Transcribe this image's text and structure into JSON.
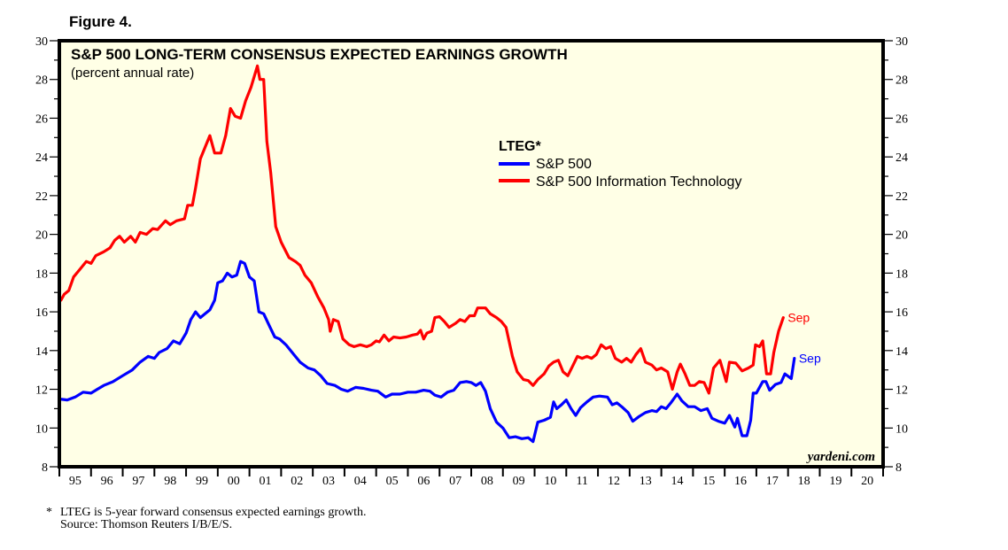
{
  "figure_label": "Figure 4.",
  "footnote": {
    "marker": "*",
    "line1": "LTEG is 5-year forward consensus expected earnings growth.",
    "line2": "Source: Thomson Reuters I/B/E/S."
  },
  "watermark": "yardeni.com",
  "colors": {
    "plot_background": "#ffffe6",
    "sp500": "#0000ff",
    "sp500_it": "#ff0000",
    "axis": "#000000"
  },
  "chart_data": {
    "type": "line",
    "title": "S&P 500 LONG-TERM CONSENSUS EXPECTED EARNINGS GROWTH",
    "subtitle": "(percent annual rate)",
    "xlabel": "",
    "ylabel": "",
    "xlim": [
      1995,
      2021
    ],
    "ylim": [
      8,
      30
    ],
    "y_major_ticks": [
      8,
      10,
      12,
      14,
      16,
      18,
      20,
      22,
      24,
      26,
      28,
      30
    ],
    "y_minor_step": 1,
    "y_axis_sides": [
      "left",
      "right"
    ],
    "x_tick_labels": [
      "95",
      "96",
      "97",
      "98",
      "99",
      "00",
      "01",
      "02",
      "03",
      "04",
      "05",
      "06",
      "07",
      "08",
      "09",
      "10",
      "11",
      "12",
      "13",
      "14",
      "15",
      "16",
      "17",
      "18",
      "19",
      "20"
    ],
    "grid": false,
    "legend": {
      "title": "LTEG*",
      "placement": "top-center",
      "entries": [
        "S&P 500",
        "S&P 500 Information Technology"
      ]
    },
    "series": [
      {
        "name": "S&P 500",
        "color": "#0000ff",
        "end_label": "Sep",
        "points": [
          [
            1995.0,
            11.5
          ],
          [
            1995.25,
            11.45
          ],
          [
            1995.5,
            11.6
          ],
          [
            1995.75,
            11.85
          ],
          [
            1996.0,
            11.8
          ],
          [
            1996.2,
            12.0
          ],
          [
            1996.4,
            12.2
          ],
          [
            1996.7,
            12.4
          ],
          [
            1997.0,
            12.7
          ],
          [
            1997.3,
            13.0
          ],
          [
            1997.55,
            13.4
          ],
          [
            1997.8,
            13.7
          ],
          [
            1998.0,
            13.6
          ],
          [
            1998.15,
            13.9
          ],
          [
            1998.4,
            14.1
          ],
          [
            1998.6,
            14.5
          ],
          [
            1998.8,
            14.35
          ],
          [
            1999.0,
            14.9
          ],
          [
            1999.15,
            15.6
          ],
          [
            1999.3,
            16.0
          ],
          [
            1999.45,
            15.7
          ],
          [
            1999.6,
            15.9
          ],
          [
            1999.75,
            16.1
          ],
          [
            1999.9,
            16.6
          ],
          [
            2000.0,
            17.5
          ],
          [
            2000.15,
            17.6
          ],
          [
            2000.3,
            18.0
          ],
          [
            2000.45,
            17.8
          ],
          [
            2000.6,
            17.9
          ],
          [
            2000.72,
            18.6
          ],
          [
            2000.85,
            18.5
          ],
          [
            2001.0,
            17.8
          ],
          [
            2001.15,
            17.6
          ],
          [
            2001.3,
            16.0
          ],
          [
            2001.45,
            15.9
          ],
          [
            2001.65,
            15.2
          ],
          [
            2001.8,
            14.7
          ],
          [
            2001.95,
            14.6
          ],
          [
            2002.15,
            14.3
          ],
          [
            2002.4,
            13.8
          ],
          [
            2002.6,
            13.4
          ],
          [
            2002.85,
            13.1
          ],
          [
            2003.05,
            13.0
          ],
          [
            2003.25,
            12.7
          ],
          [
            2003.45,
            12.3
          ],
          [
            2003.7,
            12.2
          ],
          [
            2003.9,
            12.0
          ],
          [
            2004.1,
            11.9
          ],
          [
            2004.35,
            12.1
          ],
          [
            2004.6,
            12.05
          ],
          [
            2004.85,
            11.95
          ],
          [
            2005.05,
            11.9
          ],
          [
            2005.3,
            11.6
          ],
          [
            2005.5,
            11.75
          ],
          [
            2005.75,
            11.75
          ],
          [
            2006.0,
            11.85
          ],
          [
            2006.25,
            11.85
          ],
          [
            2006.5,
            11.95
          ],
          [
            2006.7,
            11.9
          ],
          [
            2006.85,
            11.7
          ],
          [
            2007.05,
            11.6
          ],
          [
            2007.25,
            11.85
          ],
          [
            2007.45,
            11.95
          ],
          [
            2007.65,
            12.35
          ],
          [
            2007.85,
            12.4
          ],
          [
            2008.0,
            12.35
          ],
          [
            2008.15,
            12.2
          ],
          [
            2008.3,
            12.35
          ],
          [
            2008.45,
            11.9
          ],
          [
            2008.6,
            11.0
          ],
          [
            2008.8,
            10.3
          ],
          [
            2009.0,
            10.0
          ],
          [
            2009.2,
            9.5
          ],
          [
            2009.4,
            9.55
          ],
          [
            2009.6,
            9.45
          ],
          [
            2009.8,
            9.5
          ],
          [
            2009.95,
            9.3
          ],
          [
            2010.1,
            10.3
          ],
          [
            2010.3,
            10.4
          ],
          [
            2010.5,
            10.55
          ],
          [
            2010.6,
            11.35
          ],
          [
            2010.7,
            11.0
          ],
          [
            2010.85,
            11.2
          ],
          [
            2011.0,
            11.45
          ],
          [
            2011.15,
            11.0
          ],
          [
            2011.3,
            10.65
          ],
          [
            2011.45,
            11.05
          ],
          [
            2011.65,
            11.35
          ],
          [
            2011.85,
            11.6
          ],
          [
            2012.05,
            11.65
          ],
          [
            2012.3,
            11.6
          ],
          [
            2012.45,
            11.2
          ],
          [
            2012.6,
            11.3
          ],
          [
            2012.75,
            11.1
          ],
          [
            2012.95,
            10.8
          ],
          [
            2013.1,
            10.35
          ],
          [
            2013.3,
            10.6
          ],
          [
            2013.5,
            10.8
          ],
          [
            2013.7,
            10.9
          ],
          [
            2013.85,
            10.85
          ],
          [
            2014.0,
            11.1
          ],
          [
            2014.15,
            11.0
          ],
          [
            2014.3,
            11.3
          ],
          [
            2014.5,
            11.75
          ],
          [
            2014.65,
            11.4
          ],
          [
            2014.85,
            11.1
          ],
          [
            2015.05,
            11.1
          ],
          [
            2015.25,
            10.9
          ],
          [
            2015.45,
            11.0
          ],
          [
            2015.6,
            10.5
          ],
          [
            2015.8,
            10.35
          ],
          [
            2016.0,
            10.25
          ],
          [
            2016.15,
            10.65
          ],
          [
            2016.32,
            10.05
          ],
          [
            2016.4,
            10.5
          ],
          [
            2016.55,
            9.6
          ],
          [
            2016.7,
            9.6
          ],
          [
            2016.82,
            10.4
          ],
          [
            2016.9,
            11.8
          ],
          [
            2017.0,
            11.8
          ],
          [
            2017.1,
            12.1
          ],
          [
            2017.2,
            12.4
          ],
          [
            2017.3,
            12.4
          ],
          [
            2017.42,
            11.95
          ],
          [
            2017.6,
            12.25
          ],
          [
            2017.78,
            12.35
          ],
          [
            2017.9,
            12.8
          ],
          [
            2018.1,
            12.55
          ],
          [
            2018.2,
            13.6
          ]
        ]
      },
      {
        "name": "S&P 500 Information Technology",
        "color": "#ff0000",
        "end_label": "Sep",
        "points": [
          [
            1995.05,
            16.6
          ],
          [
            1995.15,
            16.9
          ],
          [
            1995.3,
            17.1
          ],
          [
            1995.45,
            17.8
          ],
          [
            1995.65,
            18.2
          ],
          [
            1995.85,
            18.6
          ],
          [
            1996.0,
            18.5
          ],
          [
            1996.15,
            18.9
          ],
          [
            1996.4,
            19.1
          ],
          [
            1996.6,
            19.3
          ],
          [
            1996.75,
            19.7
          ],
          [
            1996.9,
            19.9
          ],
          [
            1997.05,
            19.6
          ],
          [
            1997.25,
            19.9
          ],
          [
            1997.4,
            19.6
          ],
          [
            1997.55,
            20.1
          ],
          [
            1997.75,
            20.0
          ],
          [
            1997.95,
            20.3
          ],
          [
            1998.1,
            20.25
          ],
          [
            1998.35,
            20.7
          ],
          [
            1998.5,
            20.5
          ],
          [
            1998.7,
            20.7
          ],
          [
            1998.95,
            20.8
          ],
          [
            1999.05,
            21.5
          ],
          [
            1999.2,
            21.5
          ],
          [
            1999.3,
            22.4
          ],
          [
            1999.45,
            23.9
          ],
          [
            1999.75,
            25.1
          ],
          [
            1999.9,
            24.2
          ],
          [
            2000.1,
            24.2
          ],
          [
            2000.25,
            25.1
          ],
          [
            2000.4,
            26.5
          ],
          [
            2000.55,
            26.1
          ],
          [
            2000.72,
            26.0
          ],
          [
            2000.88,
            26.9
          ],
          [
            2001.05,
            27.6
          ],
          [
            2001.25,
            28.7
          ],
          [
            2001.33,
            28.0
          ],
          [
            2001.45,
            28.0
          ],
          [
            2001.55,
            24.8
          ],
          [
            2001.67,
            23.2
          ],
          [
            2001.83,
            20.4
          ],
          [
            2002.0,
            19.6
          ],
          [
            2002.25,
            18.8
          ],
          [
            2002.45,
            18.6
          ],
          [
            2002.6,
            18.4
          ],
          [
            2002.75,
            17.9
          ],
          [
            2002.95,
            17.5
          ],
          [
            2003.15,
            16.8
          ],
          [
            2003.35,
            16.2
          ],
          [
            2003.5,
            15.6
          ],
          [
            2003.55,
            15.0
          ],
          [
            2003.65,
            15.6
          ],
          [
            2003.8,
            15.5
          ],
          [
            2003.95,
            14.6
          ],
          [
            2004.15,
            14.3
          ],
          [
            2004.3,
            14.2
          ],
          [
            2004.5,
            14.3
          ],
          [
            2004.7,
            14.2
          ],
          [
            2004.85,
            14.3
          ],
          [
            2005.0,
            14.5
          ],
          [
            2005.1,
            14.45
          ],
          [
            2005.25,
            14.8
          ],
          [
            2005.4,
            14.5
          ],
          [
            2005.55,
            14.7
          ],
          [
            2005.75,
            14.65
          ],
          [
            2005.95,
            14.7
          ],
          [
            2006.15,
            14.8
          ],
          [
            2006.3,
            14.85
          ],
          [
            2006.4,
            15.05
          ],
          [
            2006.5,
            14.6
          ],
          [
            2006.6,
            14.9
          ],
          [
            2006.75,
            15.0
          ],
          [
            2006.85,
            15.7
          ],
          [
            2007.0,
            15.75
          ],
          [
            2007.15,
            15.5
          ],
          [
            2007.3,
            15.2
          ],
          [
            2007.5,
            15.4
          ],
          [
            2007.65,
            15.6
          ],
          [
            2007.8,
            15.5
          ],
          [
            2007.95,
            15.8
          ],
          [
            2008.1,
            15.8
          ],
          [
            2008.2,
            16.2
          ],
          [
            2008.45,
            16.2
          ],
          [
            2008.6,
            15.9
          ],
          [
            2008.8,
            15.7
          ],
          [
            2008.95,
            15.5
          ],
          [
            2009.1,
            15.2
          ],
          [
            2009.3,
            13.7
          ],
          [
            2009.45,
            12.9
          ],
          [
            2009.65,
            12.5
          ],
          [
            2009.8,
            12.45
          ],
          [
            2009.95,
            12.2
          ],
          [
            2010.1,
            12.5
          ],
          [
            2010.3,
            12.8
          ],
          [
            2010.45,
            13.2
          ],
          [
            2010.6,
            13.4
          ],
          [
            2010.75,
            13.5
          ],
          [
            2010.9,
            12.9
          ],
          [
            2011.05,
            12.7
          ],
          [
            2011.2,
            13.2
          ],
          [
            2011.35,
            13.7
          ],
          [
            2011.5,
            13.6
          ],
          [
            2011.65,
            13.7
          ],
          [
            2011.8,
            13.6
          ],
          [
            2011.95,
            13.8
          ],
          [
            2012.1,
            14.3
          ],
          [
            2012.25,
            14.1
          ],
          [
            2012.4,
            14.2
          ],
          [
            2012.55,
            13.6
          ],
          [
            2012.75,
            13.4
          ],
          [
            2012.9,
            13.6
          ],
          [
            2013.05,
            13.4
          ],
          [
            2013.2,
            13.8
          ],
          [
            2013.35,
            14.1
          ],
          [
            2013.5,
            13.4
          ],
          [
            2013.7,
            13.25
          ],
          [
            2013.85,
            13.0
          ],
          [
            2014.0,
            13.1
          ],
          [
            2014.2,
            12.9
          ],
          [
            2014.35,
            12.0
          ],
          [
            2014.5,
            12.9
          ],
          [
            2014.6,
            13.3
          ],
          [
            2014.75,
            12.8
          ],
          [
            2014.9,
            12.2
          ],
          [
            2015.05,
            12.2
          ],
          [
            2015.2,
            12.4
          ],
          [
            2015.35,
            12.35
          ],
          [
            2015.5,
            11.8
          ],
          [
            2015.65,
            13.1
          ],
          [
            2015.85,
            13.5
          ],
          [
            2016.05,
            12.4
          ],
          [
            2016.15,
            13.4
          ],
          [
            2016.35,
            13.35
          ],
          [
            2016.55,
            12.95
          ],
          [
            2016.75,
            13.1
          ],
          [
            2016.9,
            13.25
          ],
          [
            2016.97,
            14.3
          ],
          [
            2017.1,
            14.2
          ],
          [
            2017.2,
            14.5
          ],
          [
            2017.32,
            12.8
          ],
          [
            2017.45,
            12.8
          ],
          [
            2017.55,
            13.9
          ],
          [
            2017.7,
            15.0
          ],
          [
            2017.85,
            15.7
          ]
        ]
      }
    ]
  }
}
